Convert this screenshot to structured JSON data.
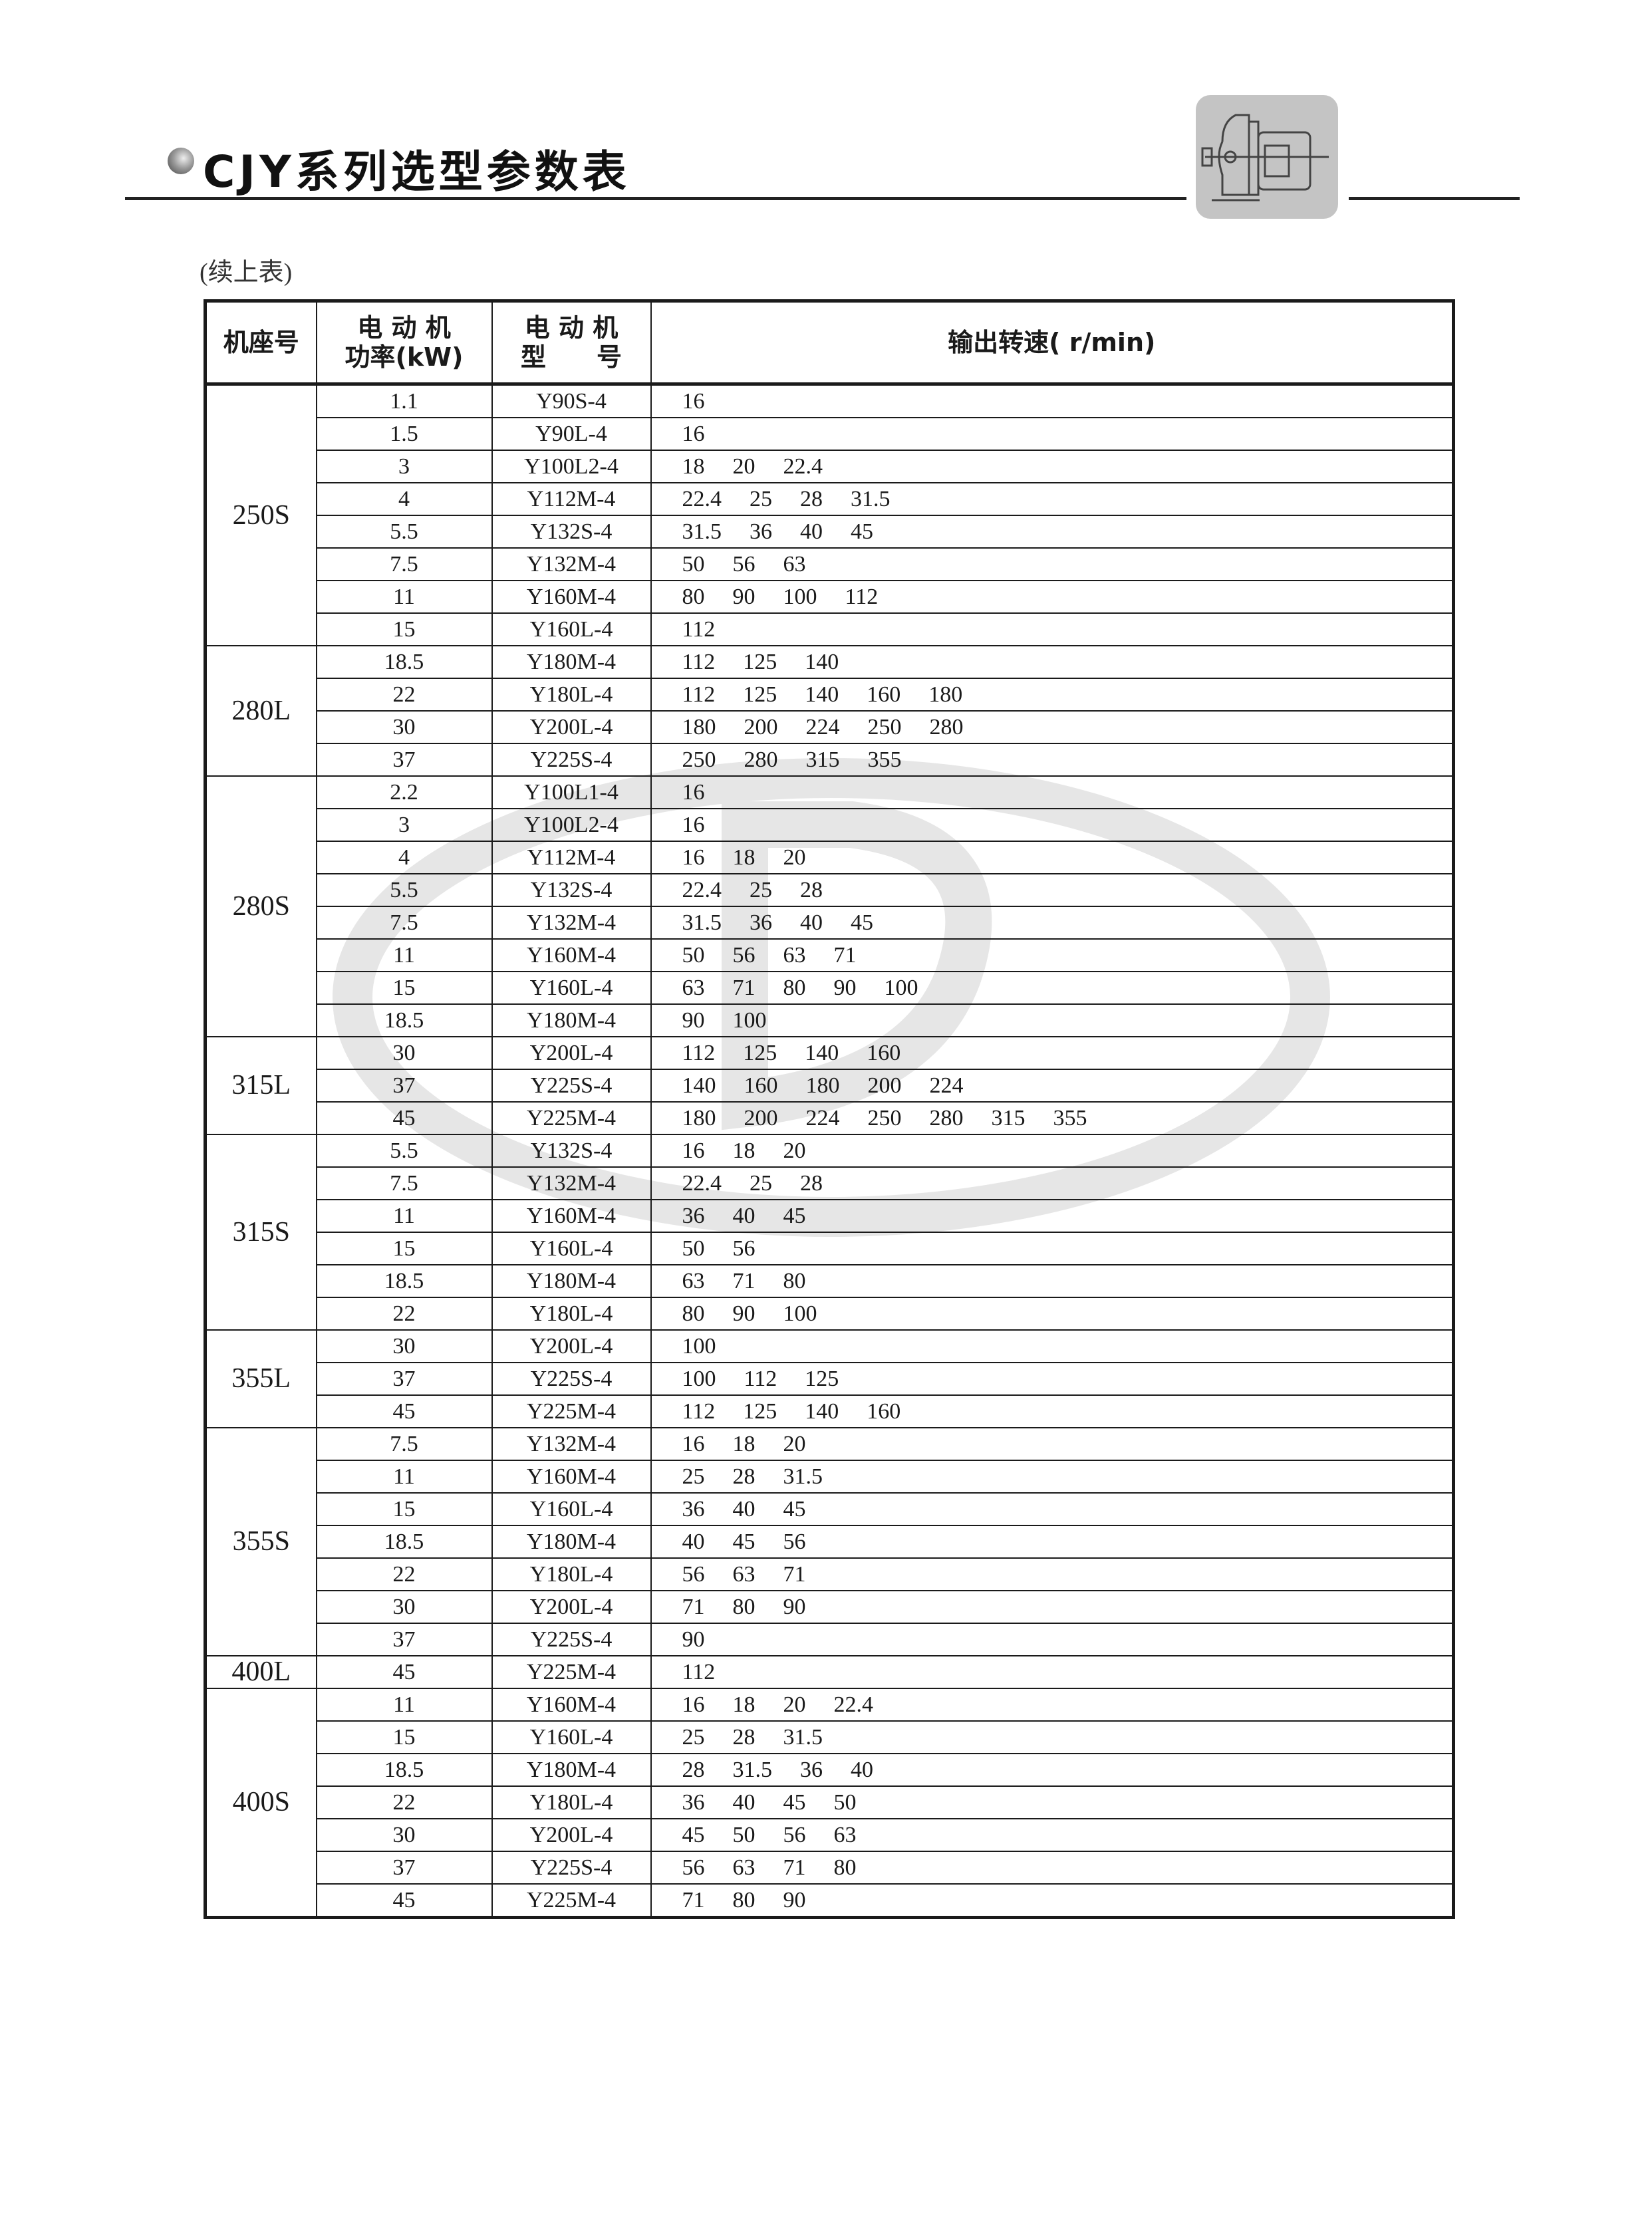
{
  "header": {
    "title": "CJY系列选型参数表",
    "icon": "gear-motor-icon",
    "continued": "(续上表)"
  },
  "table": {
    "columns": {
      "frame": "机座号",
      "power_line1": "电 动 机",
      "power_line2": "功率(kW)",
      "model_line1": "电 动 机",
      "model_line2": "型　　号",
      "speed": "输出转速( r/min)"
    },
    "groups": [
      {
        "frame": "250S",
        "rows": [
          {
            "power": "1.1",
            "model": "Y90S-4",
            "speeds": [
              "16"
            ]
          },
          {
            "power": "1.5",
            "model": "Y90L-4",
            "speeds": [
              "16"
            ]
          },
          {
            "power": "3",
            "model": "Y100L2-4",
            "speeds": [
              "18",
              "20",
              "22.4"
            ]
          },
          {
            "power": "4",
            "model": "Y112M-4",
            "speeds": [
              "22.4",
              "25",
              "28",
              "31.5"
            ]
          },
          {
            "power": "5.5",
            "model": "Y132S-4",
            "speeds": [
              "31.5",
              "36",
              "40",
              "45"
            ]
          },
          {
            "power": "7.5",
            "model": "Y132M-4",
            "speeds": [
              "50",
              "56",
              "63"
            ]
          },
          {
            "power": "11",
            "model": "Y160M-4",
            "speeds": [
              "80",
              "90",
              "100",
              "112"
            ]
          },
          {
            "power": "15",
            "model": "Y160L-4",
            "speeds": [
              "112"
            ]
          }
        ]
      },
      {
        "frame": "280L",
        "rows": [
          {
            "power": "18.5",
            "model": "Y180M-4",
            "speeds": [
              "112",
              "125",
              "140"
            ]
          },
          {
            "power": "22",
            "model": "Y180L-4",
            "speeds": [
              "112",
              "125",
              "140",
              "160",
              "180"
            ]
          },
          {
            "power": "30",
            "model": "Y200L-4",
            "speeds": [
              "180",
              "200",
              "224",
              "250",
              "280"
            ]
          },
          {
            "power": "37",
            "model": "Y225S-4",
            "speeds": [
              "250",
              "280",
              "315",
              "355"
            ]
          }
        ]
      },
      {
        "frame": "280S",
        "rows": [
          {
            "power": "2.2",
            "model": "Y100L1-4",
            "speeds": [
              "16"
            ]
          },
          {
            "power": "3",
            "model": "Y100L2-4",
            "speeds": [
              "16"
            ]
          },
          {
            "power": "4",
            "model": "Y112M-4",
            "speeds": [
              "16",
              "18",
              "20"
            ]
          },
          {
            "power": "5.5",
            "model": "Y132S-4",
            "speeds": [
              "22.4",
              "25",
              "28"
            ]
          },
          {
            "power": "7.5",
            "model": "Y132M-4",
            "speeds": [
              "31.5",
              "36",
              "40",
              "45"
            ]
          },
          {
            "power": "11",
            "model": "Y160M-4",
            "speeds": [
              "50",
              "56",
              "63",
              "71"
            ]
          },
          {
            "power": "15",
            "model": "Y160L-4",
            "speeds": [
              "63",
              "71",
              "80",
              "90",
              "100"
            ]
          },
          {
            "power": "18.5",
            "model": "Y180M-4",
            "speeds": [
              "90",
              "100"
            ]
          }
        ]
      },
      {
        "frame": "315L",
        "rows": [
          {
            "power": "30",
            "model": "Y200L-4",
            "speeds": [
              "112",
              "125",
              "140",
              "160"
            ]
          },
          {
            "power": "37",
            "model": "Y225S-4",
            "speeds": [
              "140",
              "160",
              "180",
              "200",
              "224"
            ]
          },
          {
            "power": "45",
            "model": "Y225M-4",
            "speeds": [
              "180",
              "200",
              "224",
              "250",
              "280",
              "315",
              "355"
            ]
          }
        ]
      },
      {
        "frame": "315S",
        "rows": [
          {
            "power": "5.5",
            "model": "Y132S-4",
            "speeds": [
              "16",
              "18",
              "20"
            ]
          },
          {
            "power": "7.5",
            "model": "Y132M-4",
            "speeds": [
              "22.4",
              "25",
              "28"
            ]
          },
          {
            "power": "11",
            "model": "Y160M-4",
            "speeds": [
              "36",
              "40",
              "45"
            ]
          },
          {
            "power": "15",
            "model": "Y160L-4",
            "speeds": [
              "50",
              "56"
            ]
          },
          {
            "power": "18.5",
            "model": "Y180M-4",
            "speeds": [
              "63",
              "71",
              "80"
            ]
          },
          {
            "power": "22",
            "model": "Y180L-4",
            "speeds": [
              "80",
              "90",
              "100"
            ]
          }
        ]
      },
      {
        "frame": "355L",
        "rows": [
          {
            "power": "30",
            "model": "Y200L-4",
            "speeds": [
              "100"
            ]
          },
          {
            "power": "37",
            "model": "Y225S-4",
            "speeds": [
              "100",
              "112",
              "125"
            ]
          },
          {
            "power": "45",
            "model": "Y225M-4",
            "speeds": [
              "112",
              "125",
              "140",
              "160"
            ]
          }
        ]
      },
      {
        "frame": "355S",
        "rows": [
          {
            "power": "7.5",
            "model": "Y132M-4",
            "speeds": [
              "16",
              "18",
              "20"
            ]
          },
          {
            "power": "11",
            "model": "Y160M-4",
            "speeds": [
              "25",
              "28",
              "31.5"
            ]
          },
          {
            "power": "15",
            "model": "Y160L-4",
            "speeds": [
              "36",
              "40",
              "45"
            ]
          },
          {
            "power": "18.5",
            "model": "Y180M-4",
            "speeds": [
              "40",
              "45",
              "56"
            ]
          },
          {
            "power": "22",
            "model": "Y180L-4",
            "speeds": [
              "56",
              "63",
              "71"
            ]
          },
          {
            "power": "30",
            "model": "Y200L-4",
            "speeds": [
              "71",
              "80",
              "90"
            ]
          },
          {
            "power": "37",
            "model": "Y225S-4",
            "speeds": [
              "90"
            ]
          }
        ]
      },
      {
        "frame": "400L",
        "rows": [
          {
            "power": "45",
            "model": "Y225M-4",
            "speeds": [
              "112"
            ]
          }
        ]
      },
      {
        "frame": "400S",
        "rows": [
          {
            "power": "11",
            "model": "Y160M-4",
            "speeds": [
              "16",
              "18",
              "20",
              "22.4"
            ]
          },
          {
            "power": "15",
            "model": "Y160L-4",
            "speeds": [
              "25",
              "28",
              "31.5"
            ]
          },
          {
            "power": "18.5",
            "model": "Y180M-4",
            "speeds": [
              "28",
              "31.5",
              "36",
              "40"
            ]
          },
          {
            "power": "22",
            "model": "Y180L-4",
            "speeds": [
              "36",
              "40",
              "45",
              "50"
            ]
          },
          {
            "power": "30",
            "model": "Y200L-4",
            "speeds": [
              "45",
              "50",
              "56",
              "63"
            ]
          },
          {
            "power": "37",
            "model": "Y225S-4",
            "speeds": [
              "56",
              "63",
              "71",
              "80"
            ]
          },
          {
            "power": "45",
            "model": "Y225M-4",
            "speeds": [
              "71",
              "80",
              "90"
            ]
          }
        ]
      }
    ]
  }
}
